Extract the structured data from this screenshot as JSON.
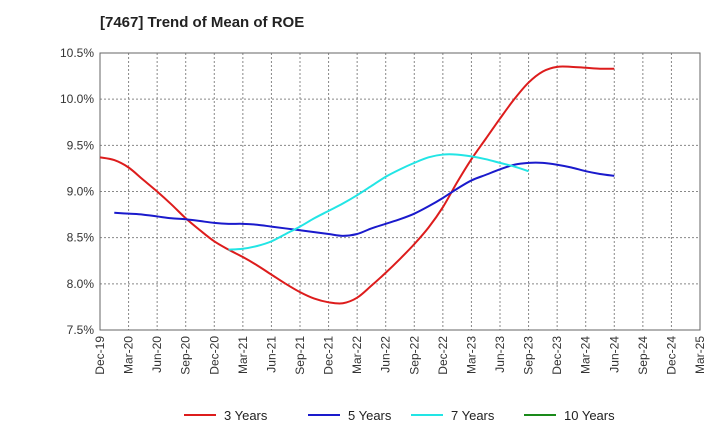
{
  "title": "[7467]  Trend of Mean of ROE",
  "chart_data": {
    "type": "line",
    "title": "[7467]  Trend of Mean of ROE",
    "xlabel": "",
    "ylabel": "",
    "x_ticks": [
      "Dec-19",
      "Mar-20",
      "Jun-20",
      "Sep-20",
      "Dec-20",
      "Mar-21",
      "Jun-21",
      "Sep-21",
      "Dec-21",
      "Mar-22",
      "Jun-22",
      "Sep-22",
      "Dec-22",
      "Mar-23",
      "Jun-23",
      "Sep-23",
      "Dec-23",
      "Mar-24",
      "Jun-24",
      "Sep-24",
      "Dec-24",
      "Mar-25"
    ],
    "y_ticks": [
      "7.5%",
      "8.0%",
      "8.5%",
      "9.0%",
      "9.5%",
      "10.0%",
      "10.5%"
    ],
    "y_tick_values": [
      7.5,
      8.0,
      8.5,
      9.0,
      9.5,
      10.0,
      10.5
    ],
    "ylim": [
      7.5,
      10.5
    ],
    "grid": true,
    "legend_position": "bottom",
    "series": [
      {
        "name": "3 Years",
        "color": "#dd1c1c",
        "values": [
          9.37,
          9.34,
          9.26,
          9.13,
          9.0,
          8.86,
          8.71,
          8.58,
          8.46,
          8.37,
          8.29,
          8.2,
          8.1,
          8.0,
          7.91,
          7.84,
          7.8,
          7.79,
          7.85,
          7.98,
          8.12,
          8.27,
          8.43,
          8.61,
          8.83,
          9.1,
          9.35,
          9.57,
          9.79,
          10.0,
          10.18,
          10.3,
          10.35,
          10.35,
          10.34,
          10.33,
          10.33
        ]
      },
      {
        "name": "5 Years",
        "color": "#1a1acc",
        "values": [
          null,
          8.77,
          8.76,
          8.75,
          8.73,
          8.71,
          8.7,
          8.68,
          8.66,
          8.65,
          8.65,
          8.64,
          8.62,
          8.6,
          8.58,
          8.56,
          8.54,
          8.52,
          8.54,
          8.6,
          8.65,
          8.7,
          8.76,
          8.84,
          8.93,
          9.03,
          9.12,
          9.18,
          9.24,
          9.29,
          9.31,
          9.31,
          9.29,
          9.26,
          9.22,
          9.19,
          9.17
        ]
      },
      {
        "name": "7 Years",
        "color": "#22e5e5",
        "values": [
          null,
          null,
          null,
          null,
          null,
          null,
          null,
          null,
          null,
          8.37,
          8.38,
          8.41,
          8.46,
          8.54,
          8.62,
          8.71,
          8.79,
          8.87,
          8.96,
          9.06,
          9.16,
          9.24,
          9.31,
          9.37,
          9.4,
          9.4,
          9.38,
          9.35,
          9.31,
          9.27,
          9.22
        ]
      },
      {
        "name": "10 Years",
        "color": "#1a8a1a",
        "values": []
      }
    ]
  }
}
